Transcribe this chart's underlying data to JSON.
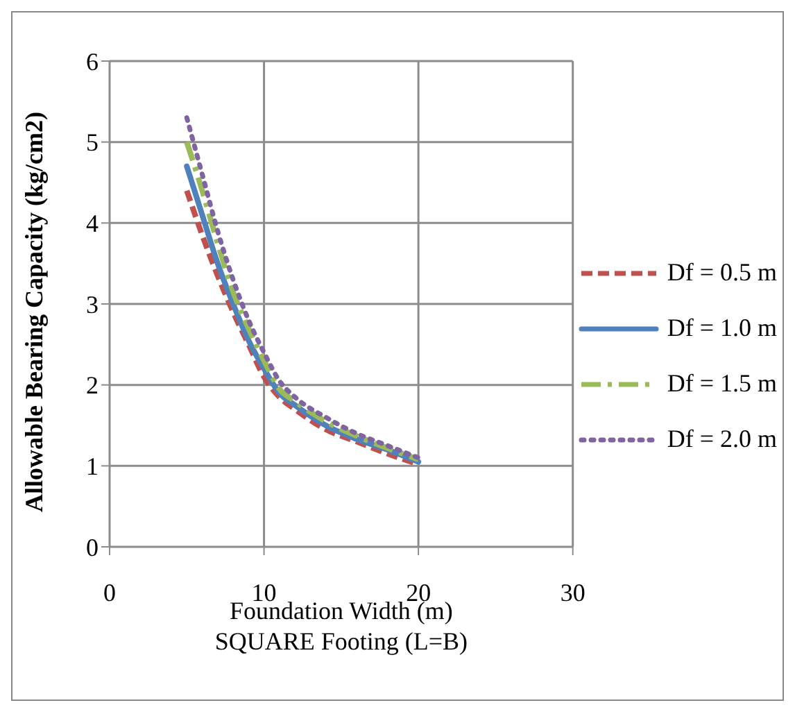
{
  "chart_data": {
    "type": "line",
    "xlabel": "Foundation Width (m)\nSQUARE Footing (L=B)",
    "ylabel": "Allowable Bearing Capacity  (kg/cm2)",
    "x": [
      5,
      6,
      7,
      8,
      9,
      10,
      11,
      12,
      14,
      16,
      18,
      20
    ],
    "series": [
      {
        "name": "Df = 0.5 m",
        "color": "#c0504d",
        "line_style": "dashed",
        "values": [
          4.4,
          3.85,
          3.35,
          2.9,
          2.5,
          2.1,
          1.85,
          1.7,
          1.45,
          1.3,
          1.15,
          1.02
        ]
      },
      {
        "name": "Df = 1.0 m",
        "color": "#4f81bd",
        "line_style": "solid",
        "values": [
          4.7,
          4.1,
          3.5,
          3.0,
          2.55,
          2.2,
          1.9,
          1.75,
          1.5,
          1.33,
          1.2,
          1.05
        ]
      },
      {
        "name": "Df = 1.5 m",
        "color": "#9bbb59",
        "line_style": "dashdot",
        "values": [
          5.0,
          4.4,
          3.75,
          3.15,
          2.7,
          2.3,
          1.95,
          1.8,
          1.55,
          1.37,
          1.22,
          1.08
        ]
      },
      {
        "name": "Df = 2.0 m",
        "color": "#8064a2",
        "line_style": "dotted",
        "values": [
          5.3,
          4.6,
          3.9,
          3.3,
          2.8,
          2.4,
          2.05,
          1.85,
          1.6,
          1.4,
          1.25,
          1.1
        ]
      }
    ],
    "xlim": [
      0,
      30
    ],
    "xticks": [
      0,
      10,
      20,
      30
    ],
    "ylim": [
      0,
      6
    ],
    "yticks": [
      0,
      1,
      2,
      3,
      4,
      5,
      6
    ],
    "grid": true,
    "legend": "right",
    "marker": "none"
  }
}
